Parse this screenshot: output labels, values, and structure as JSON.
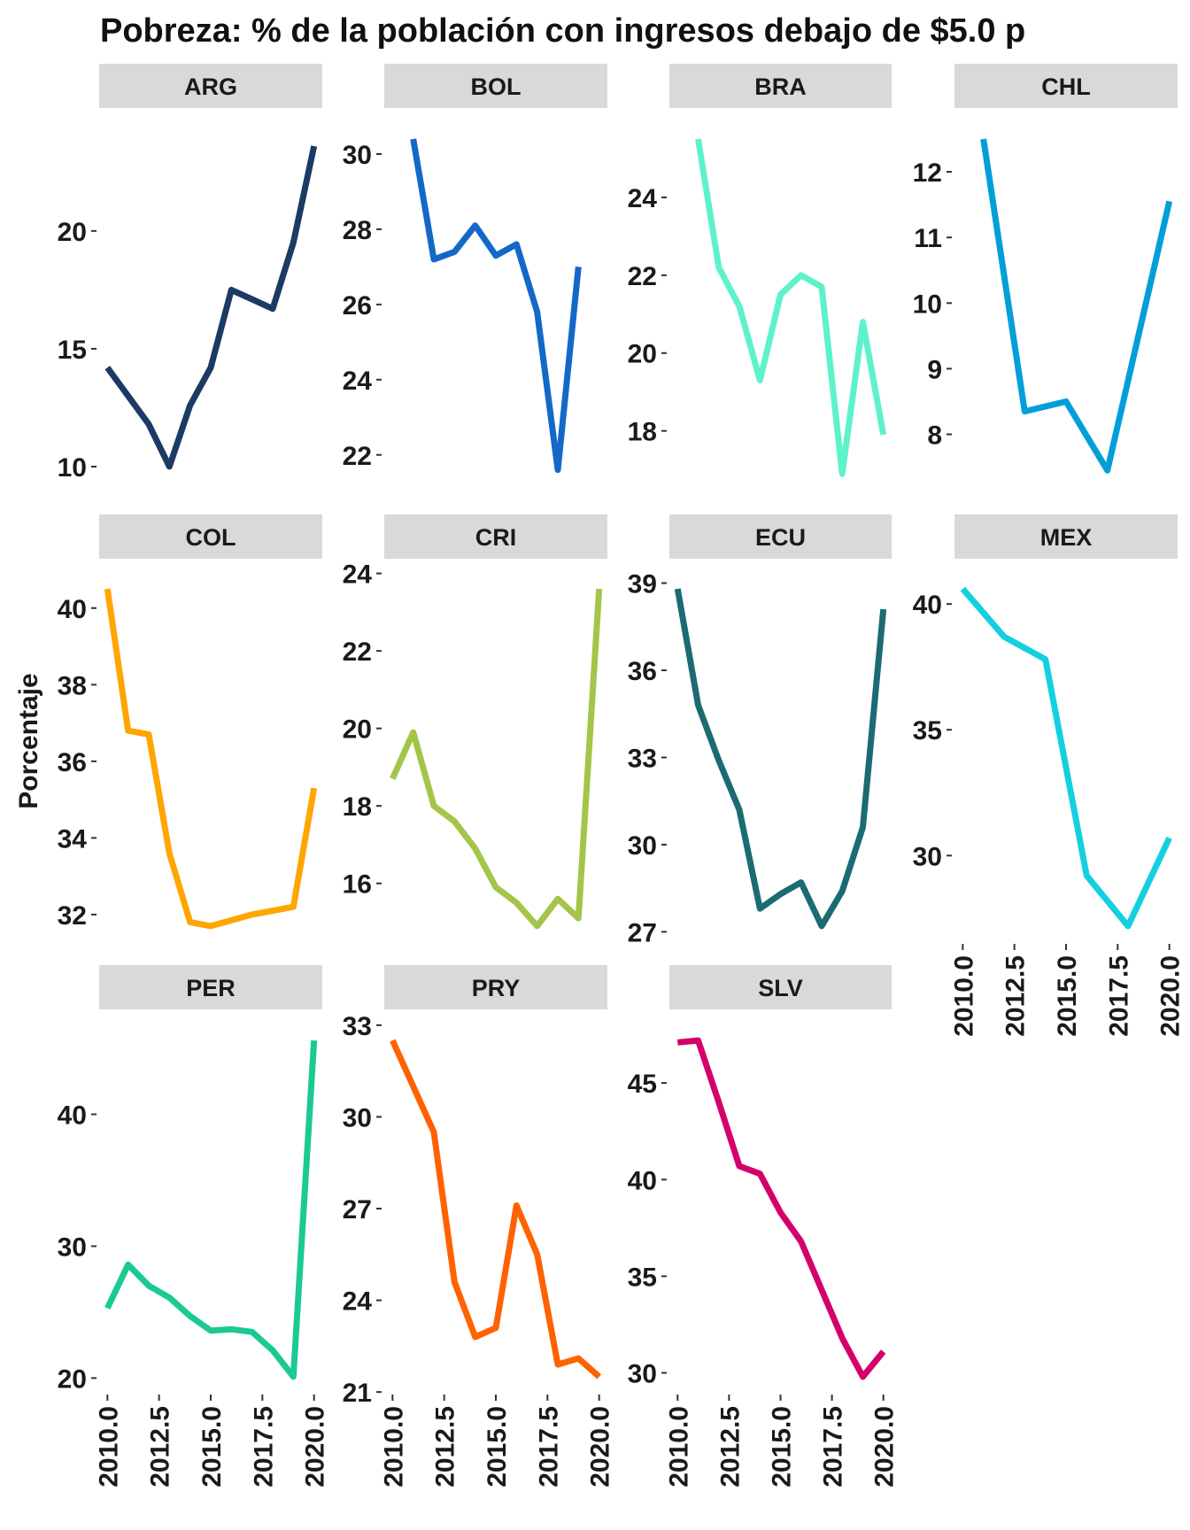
{
  "chart_data": {
    "type": "line",
    "title": "Pobreza: % de la población con ingresos debajo de $5.0 p",
    "ylabel": "Porcentaje",
    "xlabel": "",
    "x_ticks": [
      "2010.0",
      "2012.5",
      "2015.0",
      "2017.5",
      "2020.0"
    ],
    "facets": [
      {
        "name": "ARG",
        "color": "#1b3a64",
        "ylim": [
          9.7,
          23.9
        ],
        "yticks": [
          "10",
          "15",
          "20"
        ],
        "x": [
          2009,
          2010,
          2011,
          2012,
          2013,
          2014,
          2015,
          2016,
          2017,
          2018,
          2019,
          2020
        ],
        "y": [
          null,
          14.2,
          13.0,
          11.8,
          10.0,
          12.6,
          14.2,
          17.5,
          17.1,
          16.7,
          19.5,
          23.6
        ]
      },
      {
        "name": "BOL",
        "color": "#1468c8",
        "ylim": [
          21.5,
          30.4
        ],
        "yticks": [
          "22",
          "24",
          "26",
          "28",
          "30"
        ],
        "x": [
          2011,
          2012,
          2013,
          2014,
          2015,
          2016,
          2017,
          2018,
          2019,
          2020
        ],
        "y": [
          30.4,
          27.2,
          27.4,
          28.1,
          27.3,
          27.6,
          25.8,
          21.6,
          27.0,
          null
        ]
      },
      {
        "name": "BRA",
        "color": "#5ef2cb",
        "ylim": [
          16.9,
          25.5
        ],
        "yticks": [
          "18",
          "20",
          "22",
          "24"
        ],
        "x": [
          2011,
          2012,
          2013,
          2014,
          2015,
          2016,
          2017,
          2018,
          2019,
          2020
        ],
        "y": [
          25.5,
          22.2,
          21.2,
          19.3,
          21.5,
          22.0,
          21.7,
          16.9,
          20.8,
          17.9
        ]
      },
      {
        "name": "CHL",
        "color": "#019fd8",
        "ylim": [
          7.4,
          12.5
        ],
        "yticks": [
          "8",
          "9",
          "10",
          "11",
          "12"
        ],
        "x": [
          2011,
          2013,
          2015,
          2017,
          2020
        ],
        "y": [
          12.5,
          8.35,
          8.5,
          7.45,
          11.55
        ]
      },
      {
        "name": "COL",
        "color": "#ffa500",
        "ylim": [
          31.7,
          40.5
        ],
        "yticks": [
          "32",
          "34",
          "36",
          "38",
          "40"
        ],
        "x": [
          2010,
          2011,
          2012,
          2013,
          2014,
          2015,
          2016,
          2017,
          2018,
          2019,
          2020
        ],
        "y": [
          40.5,
          36.8,
          36.7,
          33.6,
          31.8,
          31.7,
          31.85,
          32.0,
          32.1,
          32.2,
          35.3
        ]
      },
      {
        "name": "CRI",
        "color": "#a3c549",
        "ylim": [
          14.9,
          23.6
        ],
        "yticks": [
          "16",
          "18",
          "20",
          "22",
          "24"
        ],
        "x": [
          2010,
          2011,
          2012,
          2013,
          2014,
          2015,
          2016,
          2017,
          2018,
          2019,
          2020
        ],
        "y": [
          18.7,
          19.9,
          18.0,
          17.6,
          16.9,
          15.9,
          15.5,
          14.9,
          15.6,
          15.1,
          23.6
        ]
      },
      {
        "name": "ECU",
        "color": "#1b6b72",
        "ylim": [
          27.2,
          38.8
        ],
        "yticks": [
          "27",
          "30",
          "33",
          "36",
          "39"
        ],
        "x": [
          2010,
          2011,
          2012,
          2013,
          2014,
          2015,
          2016,
          2017,
          2018,
          2019,
          2020
        ],
        "y": [
          38.8,
          34.8,
          32.9,
          31.2,
          27.8,
          28.3,
          28.7,
          27.2,
          28.4,
          30.6,
          38.1
        ]
      },
      {
        "name": "MEX",
        "color": "#13d0e0",
        "ylim": [
          27.2,
          40.6
        ],
        "yticks": [
          "30",
          "35",
          "40"
        ],
        "x": [
          2010,
          2012,
          2014,
          2016,
          2018,
          2020
        ],
        "y": [
          40.6,
          38.7,
          37.8,
          29.2,
          27.2,
          30.7
        ]
      },
      {
        "name": "PER",
        "color": "#1bc995",
        "ylim": [
          20.1,
          45.6
        ],
        "yticks": [
          "20",
          "30",
          "40"
        ],
        "x": [
          2010,
          2011,
          2012,
          2013,
          2014,
          2015,
          2016,
          2017,
          2018,
          2019,
          2020
        ],
        "y": [
          25.3,
          28.6,
          27.0,
          26.1,
          24.7,
          23.6,
          23.7,
          23.5,
          22.1,
          20.1,
          45.6
        ]
      },
      {
        "name": "PRY",
        "color": "#ff6200",
        "ylim": [
          21.5,
          32.5
        ],
        "yticks": [
          "21",
          "24",
          "27",
          "30",
          "33"
        ],
        "x": [
          2010,
          2011,
          2012,
          2013,
          2014,
          2015,
          2016,
          2017,
          2018,
          2019,
          2020
        ],
        "y": [
          32.5,
          31.0,
          29.5,
          24.6,
          22.8,
          23.1,
          27.1,
          25.5,
          21.9,
          22.1,
          21.5
        ]
      },
      {
        "name": "SLV",
        "color": "#d4006b",
        "ylim": [
          29.8,
          47.2
        ],
        "yticks": [
          "30",
          "35",
          "40",
          "45"
        ],
        "x": [
          2010,
          2011,
          2012,
          2013,
          2014,
          2015,
          2016,
          2017,
          2018,
          2019,
          2020
        ],
        "y": [
          47.1,
          47.2,
          44.0,
          40.7,
          40.3,
          38.3,
          36.8,
          34.3,
          31.8,
          29.8,
          31.1
        ]
      }
    ]
  }
}
